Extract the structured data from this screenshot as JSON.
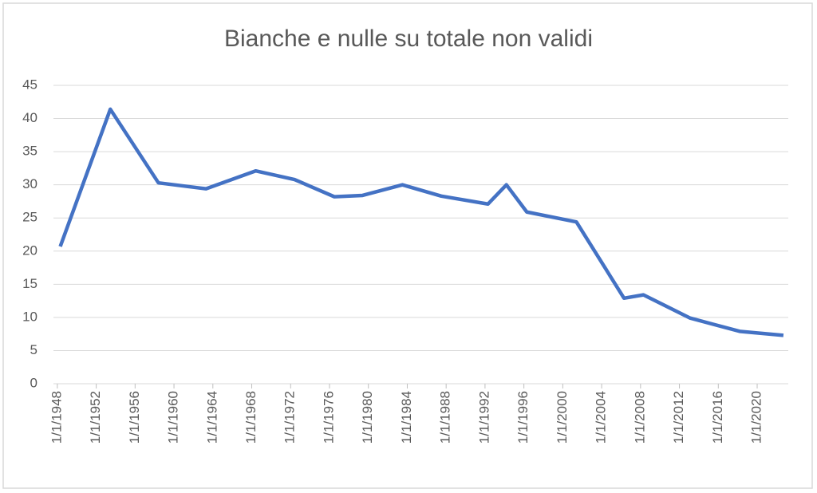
{
  "chart_data": {
    "type": "line",
    "title": "Bianche e nulle su totale non validi",
    "x": [
      1948.3,
      1953.45,
      1958.4,
      1963.3,
      1968.4,
      1972.4,
      1976.5,
      1979.4,
      1983.5,
      1987.5,
      1992.3,
      1994.2,
      1996.3,
      2001.4,
      2006.3,
      2008.3,
      2013.1,
      2018.2,
      2022.7
    ],
    "series": [
      {
        "color": "#4472c4",
        "values": [
          20.7,
          41.4,
          30.3,
          29.4,
          32.1,
          30.8,
          28.2,
          28.4,
          30.0,
          28.3,
          27.1,
          30.0,
          25.9,
          24.4,
          12.9,
          13.4,
          9.9,
          7.9,
          7.3
        ]
      }
    ],
    "xlim": [
      1947.6,
      2023.2
    ],
    "xticks": [
      {
        "value": 1948,
        "label": "1/1/1948"
      },
      {
        "value": 1952,
        "label": "1/1/1952"
      },
      {
        "value": 1956,
        "label": "1/1/1956"
      },
      {
        "value": 1960,
        "label": "1/1/1960"
      },
      {
        "value": 1964,
        "label": "1/1/1964"
      },
      {
        "value": 1968,
        "label": "1/1/1968"
      },
      {
        "value": 1972,
        "label": "1/1/1972"
      },
      {
        "value": 1976,
        "label": "1/1/1976"
      },
      {
        "value": 1980,
        "label": "1/1/1980"
      },
      {
        "value": 1984,
        "label": "1/1/1984"
      },
      {
        "value": 1988,
        "label": "1/1/1988"
      },
      {
        "value": 1992,
        "label": "1/1/1992"
      },
      {
        "value": 1996,
        "label": "1/1/1996"
      },
      {
        "value": 2000,
        "label": "1/1/2000"
      },
      {
        "value": 2004,
        "label": "1/1/2004"
      },
      {
        "value": 2008,
        "label": "1/1/2008"
      },
      {
        "value": 2012,
        "label": "1/1/2012"
      },
      {
        "value": 2016,
        "label": "1/1/2016"
      },
      {
        "value": 2020,
        "label": "1/1/2020"
      }
    ],
    "ylim": [
      0,
      45
    ],
    "yticks": [
      0,
      5,
      10,
      15,
      20,
      25,
      30,
      35,
      40,
      45
    ],
    "grid": true
  }
}
